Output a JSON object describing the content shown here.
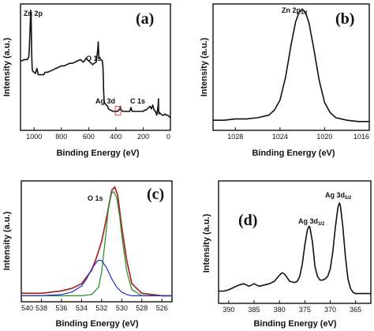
{
  "chart_data": [
    {
      "panel": "(a)",
      "type": "line",
      "xlabel": "Binding Energy (eV)",
      "ylabel": "Intensity (a.u.)",
      "xlim": [
        1100,
        0
      ],
      "ylim": [
        0,
        1
      ],
      "xticks": [
        1000,
        800,
        600,
        400,
        200,
        0
      ],
      "xtick_labels": [
        "1000",
        "800",
        "600",
        "400",
        "200",
        "0"
      ],
      "grid": false,
      "legend": "none",
      "series": [
        {
          "color": "#111111",
          "x": [
            1100,
            1090,
            1070,
            1050,
            1040,
            1035,
            1030,
            1025,
            1022,
            1020,
            1018,
            1015,
            1012,
            1000,
            990,
            980,
            970,
            960,
            950,
            940,
            930,
            920,
            900,
            880,
            860,
            840,
            820,
            800,
            780,
            760,
            740,
            720,
            700,
            680,
            660,
            640,
            630,
            620,
            610,
            600,
            590,
            580,
            570,
            560,
            545,
            540,
            535,
            530,
            528,
            525,
            520,
            510,
            500,
            495,
            492,
            490,
            485,
            470,
            460,
            455,
            440,
            420,
            410,
            400,
            390,
            380,
            370,
            368,
            365,
            360,
            350,
            340,
            330,
            320,
            310,
            300,
            295,
            290,
            285,
            280,
            270,
            250,
            230,
            210,
            200,
            190,
            180,
            170,
            160,
            150,
            140,
            130,
            120,
            110,
            100,
            90,
            88,
            86,
            84,
            80,
            70,
            60,
            50,
            40,
            30,
            20,
            10,
            0
          ],
          "y": [
            0.55,
            0.55,
            0.56,
            0.56,
            0.58,
            0.65,
            0.8,
            0.95,
            0.9,
            0.75,
            0.6,
            0.5,
            0.47,
            0.46,
            0.45,
            0.49,
            0.44,
            0.44,
            0.44,
            0.44,
            0.44,
            0.46,
            0.46,
            0.47,
            0.48,
            0.49,
            0.5,
            0.51,
            0.51,
            0.52,
            0.53,
            0.53,
            0.54,
            0.55,
            0.56,
            0.54,
            0.55,
            0.57,
            0.56,
            0.55,
            0.54,
            0.53,
            0.52,
            0.53,
            0.54,
            0.58,
            0.62,
            0.7,
            0.65,
            0.58,
            0.57,
            0.56,
            0.55,
            0.5,
            0.4,
            0.3,
            0.22,
            0.2,
            0.19,
            0.17,
            0.16,
            0.15,
            0.15,
            0.15,
            0.15,
            0.16,
            0.17,
            0.19,
            0.17,
            0.16,
            0.15,
            0.15,
            0.15,
            0.15,
            0.15,
            0.15,
            0.16,
            0.18,
            0.16,
            0.15,
            0.15,
            0.15,
            0.15,
            0.15,
            0.15,
            0.16,
            0.16,
            0.17,
            0.18,
            0.19,
            0.17,
            0.2,
            0.16,
            0.15,
            0.12,
            0.2,
            0.25,
            0.15,
            0.13,
            0.14,
            0.13,
            0.12,
            0.12,
            0.13,
            0.12,
            0.12,
            0.11,
            0.1
          ]
        }
      ],
      "annotations": [
        "Zn 2p",
        "O 1s",
        "Ag 3d",
        "C 1s"
      ],
      "inset_box": {
        "x": [
          405,
          365
        ],
        "y": [
          0.12,
          0.19
        ],
        "color": "#dd2222"
      }
    },
    {
      "panel": "(b)",
      "type": "line",
      "xlabel": "Binding Energy (eV)",
      "ylabel": "Intensity (a.u.)",
      "xlim": [
        1030,
        1016
      ],
      "ylim": [
        0,
        1
      ],
      "xticks": [
        1028,
        1024,
        1020,
        1016
      ],
      "xtick_labels": [
        "1028",
        "1024",
        "1020",
        "1016"
      ],
      "grid": false,
      "legend": "none",
      "series": [
        {
          "color": "#111111",
          "x": [
            1030,
            1029,
            1028,
            1027,
            1026,
            1025,
            1024.5,
            1024,
            1023.5,
            1023,
            1022.6,
            1022.3,
            1022,
            1021.7,
            1021.4,
            1021,
            1020.5,
            1020,
            1019.5,
            1019,
            1018,
            1017,
            1016
          ],
          "y": [
            0.08,
            0.08,
            0.09,
            0.09,
            0.1,
            0.12,
            0.16,
            0.24,
            0.42,
            0.68,
            0.86,
            0.93,
            0.96,
            0.93,
            0.85,
            0.66,
            0.4,
            0.22,
            0.14,
            0.1,
            0.08,
            0.07,
            0.07
          ]
        }
      ],
      "annotations": [
        "Zn 2p",
        "3/2"
      ]
    },
    {
      "panel": "(c)",
      "type": "line",
      "xlabel": "Binding Energy (eV)",
      "ylabel": "Intensity (a.u.)",
      "xlim": [
        540,
        525
      ],
      "ylim": [
        0,
        1
      ],
      "xticks": [
        540,
        538,
        536,
        534,
        532,
        530,
        528,
        526
      ],
      "xtick_labels": [
        "540",
        "538",
        "536",
        "534",
        "532",
        "530",
        "528",
        "526"
      ],
      "grid": false,
      "legend": "none",
      "series": [
        {
          "color": "#111111",
          "x": [
            540,
            539,
            538,
            537,
            536,
            535,
            534,
            533,
            532.5,
            532,
            531.5,
            531,
            530.7,
            530.4,
            530,
            529.5,
            529,
            528,
            527,
            526,
            525
          ],
          "y": [
            0.07,
            0.07,
            0.07,
            0.08,
            0.09,
            0.11,
            0.15,
            0.26,
            0.37,
            0.5,
            0.7,
            0.92,
            0.95,
            0.88,
            0.62,
            0.34,
            0.15,
            0.07,
            0.06,
            0.05,
            0.05
          ]
        },
        {
          "color": "#d32020",
          "x": [
            540,
            539,
            538,
            537,
            536,
            535,
            534,
            533,
            532.5,
            532,
            531.5,
            531,
            530.7,
            530.4,
            530,
            529.5,
            529,
            528,
            527,
            526,
            525
          ],
          "y": [
            0.07,
            0.07,
            0.07,
            0.08,
            0.09,
            0.11,
            0.15,
            0.26,
            0.37,
            0.5,
            0.7,
            0.92,
            0.95,
            0.88,
            0.62,
            0.34,
            0.15,
            0.07,
            0.06,
            0.05,
            0.05
          ]
        },
        {
          "color": "#1f8f1f",
          "x": [
            540,
            538,
            536,
            534,
            533,
            532.3,
            532,
            531.6,
            531.3,
            531,
            530.8,
            530.5,
            530.2,
            530,
            529.5,
            529,
            528,
            527,
            526,
            525
          ],
          "y": [
            0.05,
            0.05,
            0.05,
            0.05,
            0.06,
            0.12,
            0.25,
            0.55,
            0.8,
            0.9,
            0.91,
            0.86,
            0.7,
            0.55,
            0.25,
            0.1,
            0.05,
            0.05,
            0.05,
            0.05
          ]
        },
        {
          "color": "#2030c8",
          "x": [
            540,
            538,
            536,
            535,
            534,
            533.5,
            533,
            532.5,
            532.3,
            532,
            531.5,
            531,
            530.5,
            530,
            529.5,
            529,
            528,
            527,
            526,
            525
          ],
          "y": [
            0.05,
            0.05,
            0.06,
            0.08,
            0.13,
            0.19,
            0.27,
            0.33,
            0.345,
            0.34,
            0.28,
            0.19,
            0.12,
            0.08,
            0.06,
            0.05,
            0.05,
            0.05,
            0.05,
            0.05
          ]
        }
      ],
      "annotations": [
        "O 1s"
      ]
    },
    {
      "panel": "(d)",
      "type": "line",
      "xlabel": "Binding Energy (eV)",
      "ylabel": "Intensity (a.u.)",
      "xlim": [
        392,
        362
      ],
      "ylim": [
        0,
        1
      ],
      "xticks": [
        390,
        385,
        380,
        375,
        370,
        365
      ],
      "xtick_labels": [
        "390",
        "385",
        "380",
        "375",
        "370",
        "365"
      ],
      "grid": false,
      "legend": "none",
      "series": [
        {
          "color": "#111111",
          "x": [
            392,
            391,
            390,
            389,
            388,
            387,
            386.5,
            386,
            385,
            384.5,
            384,
            383,
            382,
            381,
            380,
            379.5,
            379,
            378,
            377,
            376.5,
            376,
            375.5,
            375,
            374.5,
            374.2,
            374,
            373.5,
            373,
            372.5,
            372,
            371.5,
            371,
            370.5,
            370,
            369.5,
            369,
            368.5,
            368.2,
            368,
            367.5,
            367,
            366.5,
            366,
            365.5,
            365,
            364,
            363,
            362
          ],
          "y": [
            0.1,
            0.1,
            0.11,
            0.13,
            0.15,
            0.16,
            0.15,
            0.14,
            0.16,
            0.15,
            0.14,
            0.15,
            0.16,
            0.18,
            0.23,
            0.25,
            0.24,
            0.18,
            0.17,
            0.18,
            0.22,
            0.32,
            0.48,
            0.6,
            0.63,
            0.62,
            0.5,
            0.3,
            0.22,
            0.19,
            0.19,
            0.2,
            0.22,
            0.28,
            0.42,
            0.62,
            0.78,
            0.82,
            0.8,
            0.62,
            0.38,
            0.2,
            0.12,
            0.09,
            0.08,
            0.08,
            0.08,
            0.08
          ]
        }
      ],
      "annotations": [
        "Ag 3d",
        "3/2",
        "Ag 3d",
        "5/2"
      ]
    }
  ],
  "panel_a": {
    "label": "(a)",
    "ylabel": "Intensity (a.u.)",
    "xlabel": "Binding Energy (eV)",
    "ann_zn": "Zn 2p",
    "ann_o": "O 1s",
    "ann_ag": "Ag 3d",
    "ann_c": "C 1s",
    "ticks": [
      "1000",
      "800",
      "600",
      "400",
      "200",
      "0"
    ]
  },
  "panel_b": {
    "label": "(b)",
    "ylabel": "Intensity (a.u.)",
    "xlabel": "Binding Energy (eV)",
    "ann_peak": "Zn 2p",
    "ann_sub": "3/2",
    "ticks": [
      "1028",
      "1024",
      "1020",
      "1016"
    ]
  },
  "panel_c": {
    "label": "(c)",
    "ylabel": "Intensity (a.u.)",
    "xlabel": "Binding Energy (eV)",
    "ann_o": "O 1s",
    "ticks": [
      "540",
      "538",
      "536",
      "534",
      "532",
      "530",
      "528",
      "526"
    ]
  },
  "panel_d": {
    "label": "(d)",
    "ylabel": "Intensity (a.u.)",
    "xlabel": "Binding Energy (eV)",
    "ann_ag32": "Ag 3d",
    "ann_ag32_sub": "3/2",
    "ann_ag52": "Ag 3d",
    "ann_ag52_sub": "5/2",
    "ticks": [
      "390",
      "385",
      "380",
      "375",
      "370",
      "365"
    ]
  }
}
